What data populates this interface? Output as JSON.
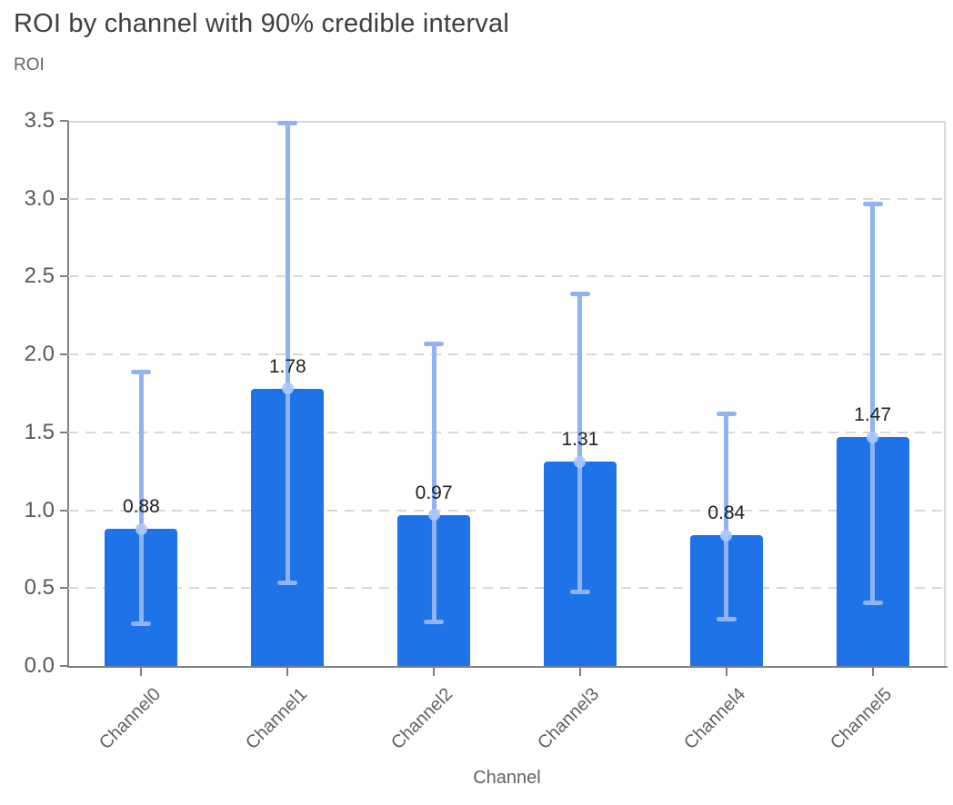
{
  "chart_data": {
    "type": "bar",
    "title": "ROI by channel with 90% credible interval",
    "ylabel": "ROI",
    "xlabel": "Channel",
    "categories": [
      "Channel0",
      "Channel1",
      "Channel2",
      "Channel3",
      "Channel4",
      "Channel5"
    ],
    "values": [
      0.88,
      1.78,
      0.97,
      1.31,
      0.84,
      1.47
    ],
    "value_labels": [
      "0.88",
      "1.78",
      "0.97",
      "1.31",
      "0.84",
      "1.47"
    ],
    "ci_low": [
      0.27,
      0.53,
      0.28,
      0.47,
      0.3,
      0.4
    ],
    "ci_high": [
      1.89,
      3.49,
      2.07,
      2.39,
      1.62,
      2.97
    ],
    "ylim": [
      0,
      3.5
    ],
    "yticks": [
      0.0,
      0.5,
      1.0,
      1.5,
      2.0,
      2.5,
      3.0,
      3.5
    ],
    "ytick_labels": [
      "0.0",
      "0.5",
      "1.0",
      "1.5",
      "2.0",
      "2.5",
      "3.0",
      "3.5"
    ],
    "grid": true,
    "legend": false,
    "colors": {
      "bar": "#1e73e8",
      "error_bar": "#8fb3f3",
      "marker": "#abc8f8",
      "gridline": "#d8d8d8",
      "axis_line": "#7d8084",
      "title_text": "#3c4043",
      "axis_text": "#5f6368",
      "value_text": "#202124"
    }
  }
}
